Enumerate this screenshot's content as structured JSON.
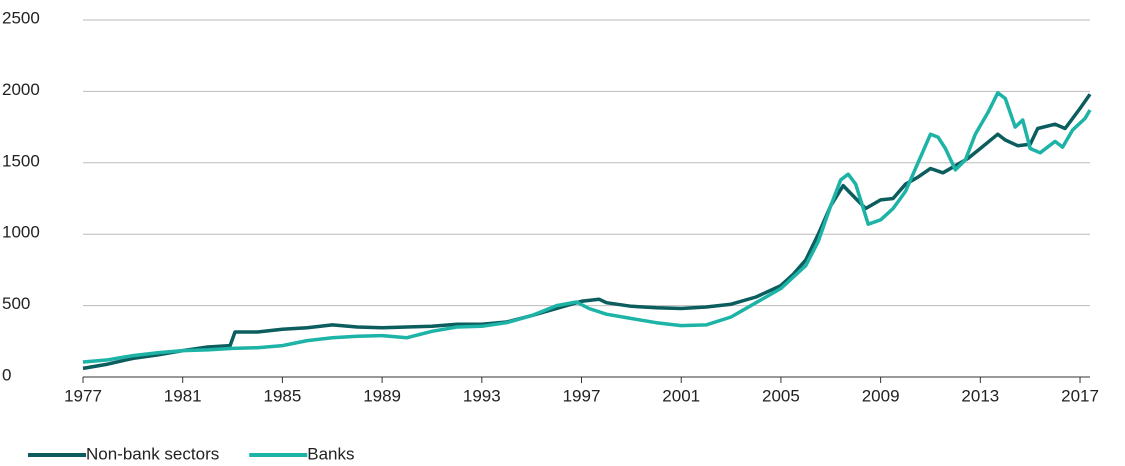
{
  "chart_data": {
    "type": "line",
    "series": [
      {
        "name": "Non-bank sectors",
        "color": "#0b5d5e",
        "x": [
          1977,
          1978,
          1979,
          1980,
          1981,
          1982,
          1982.9,
          1983.1,
          1984,
          1985,
          1986,
          1987,
          1988,
          1989,
          1990,
          1991,
          1992,
          1993,
          1994,
          1995,
          1996,
          1997,
          1997.7,
          1998,
          1999,
          2000,
          2001,
          2002,
          2003,
          2004,
          2005,
          2005.5,
          2006,
          2006.5,
          2007,
          2007.5,
          2008,
          2008.4,
          2009,
          2009.5,
          2010,
          2010.5,
          2011,
          2011.5,
          2012,
          2012.5,
          2013,
          2013.7,
          2014,
          2014.5,
          2015,
          2015.3,
          2016,
          2016.4,
          2017,
          2017.4
        ],
        "values": [
          60,
          90,
          130,
          155,
          185,
          210,
          220,
          315,
          315,
          335,
          345,
          365,
          350,
          345,
          350,
          355,
          370,
          370,
          385,
          430,
          480,
          530,
          545,
          520,
          495,
          485,
          480,
          490,
          510,
          560,
          640,
          720,
          820,
          1000,
          1200,
          1340,
          1250,
          1180,
          1240,
          1250,
          1350,
          1400,
          1460,
          1430,
          1480,
          1530,
          1600,
          1700,
          1660,
          1620,
          1630,
          1740,
          1770,
          1740,
          1880,
          1980
        ]
      },
      {
        "name": "Banks",
        "color": "#1db3a6",
        "x": [
          1977,
          1978,
          1979,
          1980,
          1981,
          1982,
          1983,
          1984,
          1985,
          1986,
          1987,
          1988,
          1989,
          1990,
          1991,
          1992,
          1993,
          1994,
          1995,
          1996,
          1996.8,
          1997.3,
          1998,
          1999,
          2000,
          2001,
          2002,
          2003,
          2004,
          2005,
          2006,
          2006.5,
          2007,
          2007.4,
          2007.7,
          2008,
          2008.5,
          2009,
          2009.5,
          2010,
          2010.5,
          2011,
          2011.3,
          2011.6,
          2012,
          2012.4,
          2012.8,
          2013.3,
          2013.7,
          2014,
          2014.4,
          2014.7,
          2015,
          2015.4,
          2016,
          2016.3,
          2016.7,
          2017.2,
          2017.4
        ],
        "values": [
          105,
          120,
          150,
          170,
          185,
          190,
          200,
          205,
          220,
          255,
          275,
          285,
          290,
          275,
          320,
          350,
          355,
          380,
          430,
          500,
          525,
          480,
          440,
          410,
          380,
          360,
          365,
          420,
          520,
          620,
          780,
          950,
          1200,
          1380,
          1420,
          1350,
          1070,
          1100,
          1180,
          1300,
          1500,
          1700,
          1680,
          1600,
          1450,
          1520,
          1700,
          1850,
          1990,
          1950,
          1750,
          1800,
          1600,
          1570,
          1650,
          1610,
          1730,
          1810,
          1870
        ]
      }
    ],
    "xlim": [
      1977,
      2017.4
    ],
    "xticks": [
      1977,
      1981,
      1985,
      1989,
      1993,
      1997,
      2001,
      2005,
      2009,
      2013,
      2017
    ],
    "ylim": [
      0,
      2500
    ],
    "yticks": [
      0,
      500,
      1000,
      1500,
      2000,
      2500
    ],
    "grid": true,
    "legend": "bottom-left"
  }
}
